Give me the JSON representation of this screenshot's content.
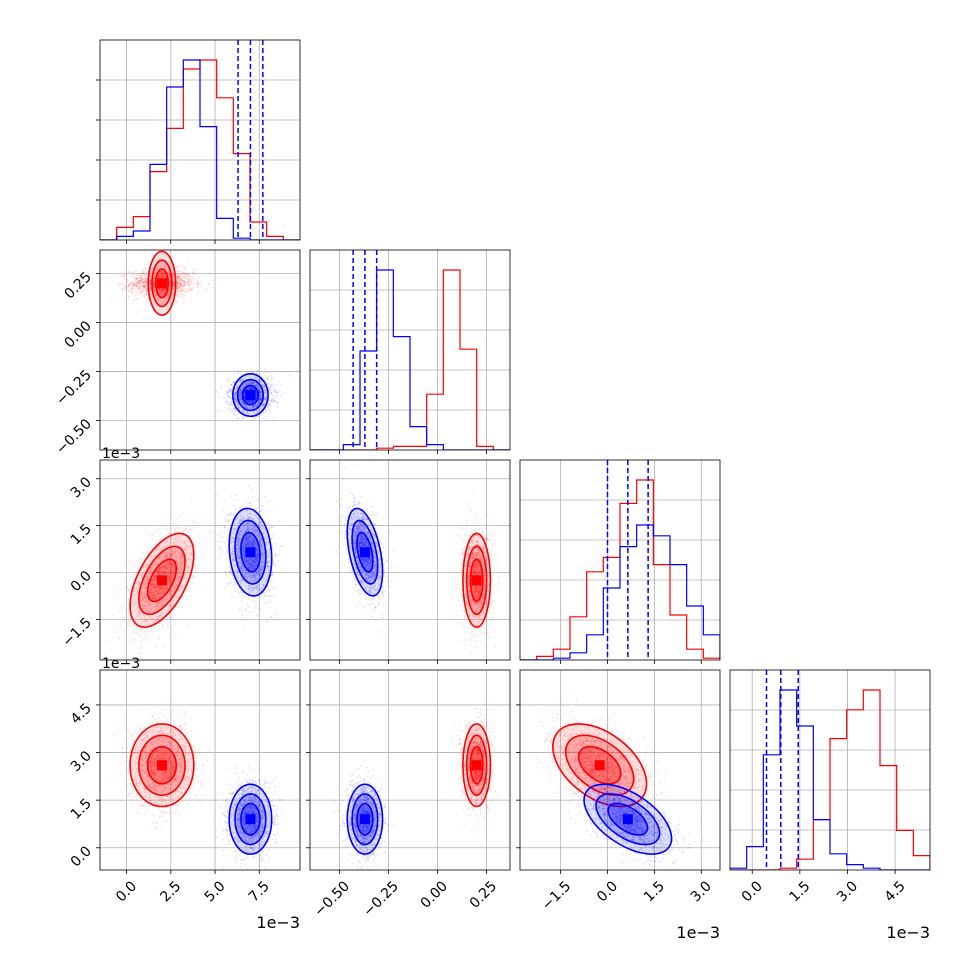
{
  "chart_data": {
    "type": "corner",
    "description_series": [
      {
        "name": "",
        "color": "#ff0000"
      },
      {
        "name": "",
        "color": "#0000ff"
      }
    ],
    "parameters": [
      {
        "range": [
          -1.5,
          9.8
        ],
        "ticks": [
          "0.0",
          "2.5",
          "5.0",
          "7.5"
        ],
        "tick_values": [
          0,
          2.5,
          5.0,
          7.5
        ],
        "offset_label": "1e−3"
      },
      {
        "range": [
          -0.65,
          0.37
        ],
        "ticks": [
          "−0.50",
          "−0.25",
          "0.00",
          "0.25"
        ],
        "tick_values": [
          -0.5,
          -0.25,
          0.0,
          0.25
        ],
        "offset_label": ""
      },
      {
        "range": [
          -2.8,
          3.6
        ],
        "ticks": [
          "−1.5",
          "0.0",
          "1.5",
          "3.0"
        ],
        "tick_values": [
          -1.5,
          0.0,
          1.5,
          3.0
        ],
        "offset_label": "1e−3"
      },
      {
        "range": [
          -0.7,
          5.6
        ],
        "ticks": [
          "0.0",
          "1.5",
          "3.0",
          "4.5"
        ],
        "tick_values": [
          0.0,
          1.5,
          3.0,
          4.5
        ],
        "offset_label": "1e−3"
      }
    ],
    "distributions": [
      {
        "color": "#ff0000",
        "means": [
          2.0,
          0.2,
          -0.25,
          2.6
        ],
        "sds": [
          0.9,
          0.035,
          0.75,
          0.65
        ],
        "correlations": {
          "0-2": 0.55,
          "2-3": -0.45
        },
        "histograms": [
          [
            0.0,
            0.07,
            0.13,
            0.38,
            0.62,
            0.95,
            1.0,
            0.79,
            0.48,
            0.1,
            0.02,
            0.0
          ],
          [
            0.0,
            0.0,
            0.0,
            0.0,
            0.01,
            0.02,
            0.02,
            0.31,
            1.0,
            0.56,
            0.02,
            0.0
          ],
          [
            0.0,
            0.02,
            0.06,
            0.24,
            0.49,
            0.57,
            0.87,
            1.0,
            0.53,
            0.25,
            0.06,
            0.01
          ],
          [
            0.0,
            0.0,
            0.0,
            0.01,
            0.06,
            0.28,
            0.73,
            0.89,
            1.0,
            0.58,
            0.22,
            0.08
          ]
        ]
      },
      {
        "color": "#0000ff",
        "means": [
          7.0,
          -0.37,
          0.65,
          0.9
        ],
        "sds": [
          0.6,
          0.045,
          0.7,
          0.55
        ],
        "correlations": {
          "0-2": -0.15,
          "1-2": -0.45,
          "2-3": -0.55
        },
        "histograms": [
          [
            0.0,
            0.02,
            0.05,
            0.42,
            0.85,
            1.0,
            0.63,
            0.12,
            0.01,
            0.0,
            0.0,
            0.0
          ],
          [
            0.0,
            0.0,
            0.03,
            0.55,
            1.0,
            0.63,
            0.13,
            0.03,
            0.0,
            0.0,
            0.0,
            0.0
          ],
          [
            0.0,
            0.0,
            0.01,
            0.04,
            0.14,
            0.4,
            0.63,
            0.75,
            0.69,
            0.53,
            0.3,
            0.14
          ],
          [
            0.01,
            0.13,
            0.64,
            1.0,
            0.8,
            0.28,
            0.09,
            0.03,
            0.01,
            0.0,
            0.0,
            0.0
          ]
        ]
      }
    ],
    "quantile_lines": {
      "color": "#0000ff",
      "style": "dashed",
      "values": [
        [
          6.3,
          7.0,
          7.7
        ],
        [
          -0.43,
          -0.37,
          -0.31
        ],
        [
          0.0,
          0.65,
          1.3
        ],
        [
          0.45,
          0.9,
          1.45
        ]
      ]
    },
    "contour_levels": 3,
    "grid": true
  }
}
